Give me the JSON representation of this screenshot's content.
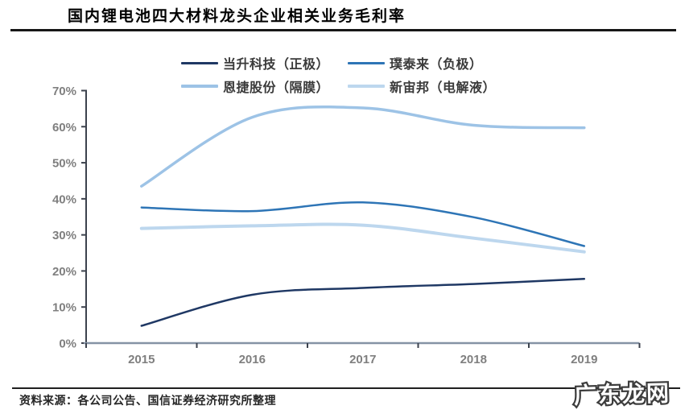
{
  "title": "国内锂电池四大材料龙头企业相关业务毛利率",
  "source": "资料来源：各公司公告、国信证券经济研究所整理",
  "watermark": "广东龙网",
  "chart_data": {
    "type": "line",
    "title": "国内锂电池四大材料龙头企业相关业务毛利率",
    "x": [
      "2015",
      "2016",
      "2017",
      "2018",
      "2019"
    ],
    "series": [
      {
        "name": "当升科技（正极）",
        "color": "#1F3864",
        "width": 2.5,
        "values": [
          4.8,
          13.4,
          15.3,
          16.4,
          17.8
        ]
      },
      {
        "name": "璞泰来（负极）",
        "color": "#2E75B6",
        "width": 2.5,
        "values": [
          37.6,
          36.6,
          39.0,
          34.9,
          26.9
        ]
      },
      {
        "name": "恩捷股份（隔膜）",
        "color": "#9DC3E6",
        "width": 3.5,
        "values": [
          43.5,
          62.6,
          65.2,
          60.4,
          59.7
        ]
      },
      {
        "name": "新宙邦（电解液）",
        "color": "#BDD7EE",
        "width": 4,
        "values": [
          31.8,
          32.5,
          32.7,
          29.1,
          25.3
        ]
      }
    ],
    "ylim": [
      0,
      70
    ],
    "ytick_step": 10,
    "ytick_suffix": "%",
    "grid": false,
    "legend_position": "top",
    "line_style": "smooth",
    "axis_colors": {
      "y_axis": "#3c424d",
      "x_axis": "#8593a5",
      "tick_label": "#7f7f7f"
    }
  }
}
